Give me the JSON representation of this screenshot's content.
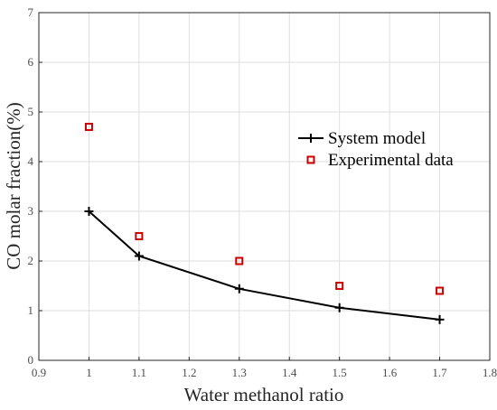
{
  "chart_data": {
    "type": "line",
    "title": "",
    "xlabel": "Water methanol ratio",
    "ylabel": "CO molar fraction(%)",
    "xlim": [
      0.9,
      1.8
    ],
    "ylim": [
      0,
      7
    ],
    "xticks": [
      "0.9",
      "1",
      "1.1",
      "1.2",
      "1.3",
      "1.4",
      "1.5",
      "1.6",
      "1.7",
      "1.8"
    ],
    "yticks": [
      "0",
      "1",
      "2",
      "3",
      "4",
      "5",
      "6",
      "7"
    ],
    "grid": true,
    "legend_position": "right",
    "series": [
      {
        "name": "System model",
        "style": "line-plus-markers",
        "color": "#000000",
        "x": [
          1.0,
          1.1,
          1.3,
          1.5,
          1.7
        ],
        "y": [
          3.0,
          2.1,
          1.44,
          1.06,
          0.82
        ]
      },
      {
        "name": "Experimental data",
        "style": "square-markers",
        "color": "#cc0000",
        "x": [
          1.0,
          1.1,
          1.3,
          1.5,
          1.7
        ],
        "y": [
          4.7,
          2.5,
          2.0,
          1.5,
          1.4
        ]
      }
    ]
  }
}
